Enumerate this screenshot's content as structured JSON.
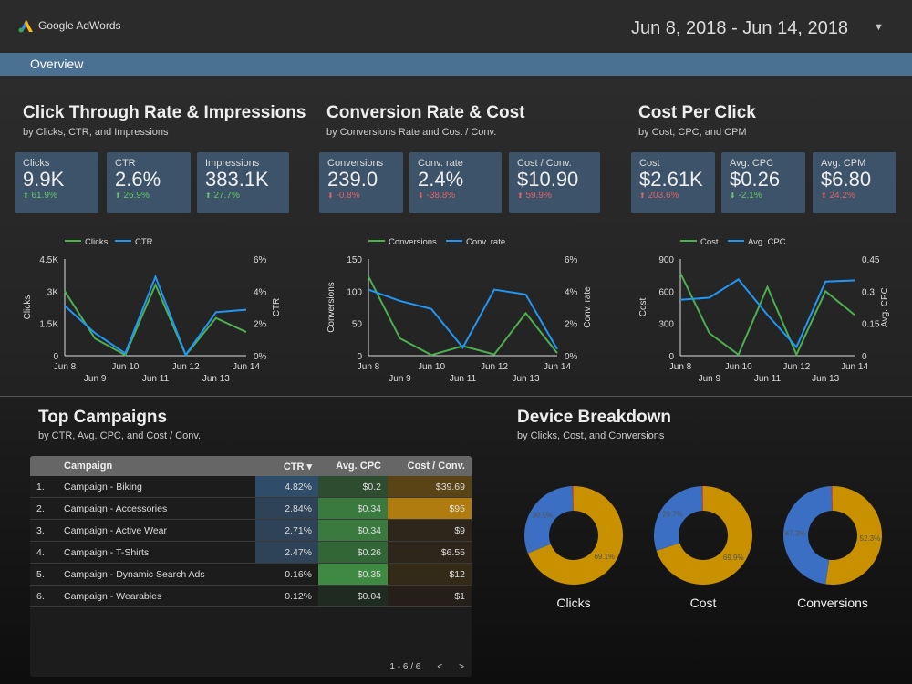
{
  "header": {
    "logo_text": "Google AdWords",
    "date_range": "Jun 8, 2018 - Jun 14, 2018"
  },
  "nav": {
    "tab": "Overview"
  },
  "sections": [
    {
      "title": "Click Through Rate & Impressions",
      "subtitle": "by Clicks, CTR, and Impressions",
      "kpis": [
        {
          "label": "Clicks",
          "value": "9.9K",
          "delta": "61.9%",
          "dir": "up"
        },
        {
          "label": "CTR",
          "value": "2.6%",
          "delta": "26.9%",
          "dir": "up"
        },
        {
          "label": "Impressions",
          "value": "383.1K",
          "delta": "27.7%",
          "dir": "up"
        }
      ]
    },
    {
      "title": "Conversion Rate & Cost",
      "subtitle": "by Conversions Rate and Cost / Conv.",
      "kpis": [
        {
          "label": "Conversions",
          "value": "239.0",
          "delta": "-0.8%",
          "dir": "down"
        },
        {
          "label": "Conv. rate",
          "value": "2.4%",
          "delta": "-38.8%",
          "dir": "down"
        },
        {
          "label": "Cost / Conv.",
          "value": "$10.90",
          "delta": "59.9%",
          "dir": "up-bad"
        }
      ]
    },
    {
      "title": "Cost Per Click",
      "subtitle": "by Cost, CPC, and CPM",
      "kpis": [
        {
          "label": "Cost",
          "value": "$2.61K",
          "delta": "203.6%",
          "dir": "up-bad"
        },
        {
          "label": "Avg. CPC",
          "value": "$0.26",
          "delta": "-2.1%",
          "dir": "down-good"
        },
        {
          "label": "Avg. CPM",
          "value": "$6.80",
          "delta": "24.2%",
          "dir": "up-bad"
        }
      ]
    }
  ],
  "chart_data": [
    {
      "type": "line",
      "x": [
        "Jun 8",
        "Jun 9",
        "Jun 10",
        "Jun 11",
        "Jun 12",
        "Jun 13",
        "Jun 14"
      ],
      "series": [
        {
          "name": "Clicks",
          "axis": "left",
          "color": "#4caf50",
          "values": [
            3000,
            800,
            30,
            3300,
            30,
            1750,
            1100
          ]
        },
        {
          "name": "CTR",
          "axis": "right",
          "color": "#2196f3",
          "values": [
            3.1,
            1.4,
            0.15,
            4.9,
            0.05,
            2.7,
            2.85
          ]
        }
      ],
      "ylabel": "Clicks",
      "y2label": "CTR",
      "ylim": [
        0,
        4500
      ],
      "y2lim": [
        0,
        6
      ],
      "yticks": [
        "0",
        "1.5K",
        "3K",
        "4.5K"
      ],
      "y2ticks": [
        "0%",
        "2%",
        "4%",
        "6%"
      ],
      "legend": "top"
    },
    {
      "type": "line",
      "x": [
        "Jun 8",
        "Jun 9",
        "Jun 10",
        "Jun 11",
        "Jun 12",
        "Jun 13",
        "Jun 14"
      ],
      "series": [
        {
          "name": "Conversions",
          "axis": "left",
          "color": "#4caf50",
          "values": [
            123,
            27,
            1,
            15,
            2,
            66,
            4
          ]
        },
        {
          "name": "Conv. rate",
          "axis": "right",
          "color": "#2196f3",
          "values": [
            4.1,
            3.4,
            2.9,
            0.5,
            4.1,
            3.8,
            0.4
          ]
        }
      ],
      "ylabel": "Conversions",
      "y2label": "Conv. rate",
      "ylim": [
        0,
        150
      ],
      "y2lim": [
        0,
        6
      ],
      "yticks": [
        "0",
        "50",
        "100",
        "150"
      ],
      "y2ticks": [
        "0%",
        "2%",
        "4%",
        "6%"
      ],
      "legend": "top"
    },
    {
      "type": "line",
      "x": [
        "Jun 8",
        "Jun 9",
        "Jun 10",
        "Jun 11",
        "Jun 12",
        "Jun 13",
        "Jun 14"
      ],
      "series": [
        {
          "name": "Cost",
          "axis": "left",
          "color": "#4caf50",
          "values": [
            770,
            210,
            10,
            640,
            10,
            600,
            380
          ]
        },
        {
          "name": "Avg. CPC",
          "axis": "right",
          "color": "#2196f3",
          "values": [
            0.26,
            0.27,
            0.355,
            0.19,
            0.04,
            0.345,
            0.35
          ]
        }
      ],
      "ylabel": "Cost",
      "y2label": "Avg. CPC",
      "ylim": [
        0,
        900
      ],
      "y2lim": [
        0,
        0.45
      ],
      "yticks": [
        "0",
        "300",
        "600",
        "900"
      ],
      "y2ticks": [
        "0",
        "0.15",
        "0.3",
        "0.45"
      ],
      "legend": "top"
    },
    {
      "type": "pie",
      "title": "Clicks",
      "slices": [
        {
          "value": 69.1,
          "label": "69.1%",
          "color": "#c99100"
        },
        {
          "value": 30.5,
          "label": "30.5%",
          "color": "#3a6fc4"
        },
        {
          "value": 0.4,
          "label": "",
          "color": "#d9452b"
        }
      ]
    },
    {
      "type": "pie",
      "title": "Cost",
      "slices": [
        {
          "value": 69.9,
          "label": "69.9%",
          "color": "#c99100"
        },
        {
          "value": 29.7,
          "label": "29.7%",
          "color": "#3a6fc4"
        },
        {
          "value": 0.4,
          "label": "",
          "color": "#d9452b"
        }
      ]
    },
    {
      "type": "pie",
      "title": "Conversions",
      "slices": [
        {
          "value": 52.3,
          "label": "52.3%",
          "color": "#c99100"
        },
        {
          "value": 47.3,
          "label": "47.3%",
          "color": "#3a6fc4"
        },
        {
          "value": 0.4,
          "label": "",
          "color": "#d9452b"
        }
      ]
    }
  ],
  "campaigns": {
    "title": "Top Campaigns",
    "subtitle": "by CTR, Avg. CPC, and Cost / Conv.",
    "columns": [
      "Campaign",
      "CTR ▾",
      "Avg. CPC",
      "Cost / Conv."
    ],
    "rows": [
      [
        "1.",
        "Campaign - Biking",
        "4.82%",
        "$0.2",
        "$39.69"
      ],
      [
        "2.",
        "Campaign - Accessories",
        "2.84%",
        "$0.34",
        "$95"
      ],
      [
        "3.",
        "Campaign - Active Wear",
        "2.71%",
        "$0.34",
        "$9"
      ],
      [
        "4.",
        "Campaign - T-Shirts",
        "2.47%",
        "$0.26",
        "$6.55"
      ],
      [
        "5.",
        "Campaign - Dynamic Search Ads",
        "0.16%",
        "$0.35",
        "$12"
      ],
      [
        "6.",
        "Campaign - Wearables",
        "0.12%",
        "$0.04",
        "$1"
      ]
    ],
    "heat": {
      "ctr": [
        "#2f4d6a",
        "#2e4258",
        "#2e4258",
        "#2e4258",
        "#1c1c1c",
        "#1c1c1c"
      ],
      "cpc": [
        "#2e4c30",
        "#3a7a3e",
        "#3a7a3e",
        "#336636",
        "#3f8a42",
        "#1f2a20"
      ],
      "cost": [
        "#5a4416",
        "#b07c10",
        "#2e261a",
        "#2e261a",
        "#332a18",
        "#241f18"
      ]
    },
    "pagination": "1 - 6 / 6"
  },
  "devices": {
    "title": "Device Breakdown",
    "subtitle": "by Clicks, Cost, and Conversions"
  }
}
